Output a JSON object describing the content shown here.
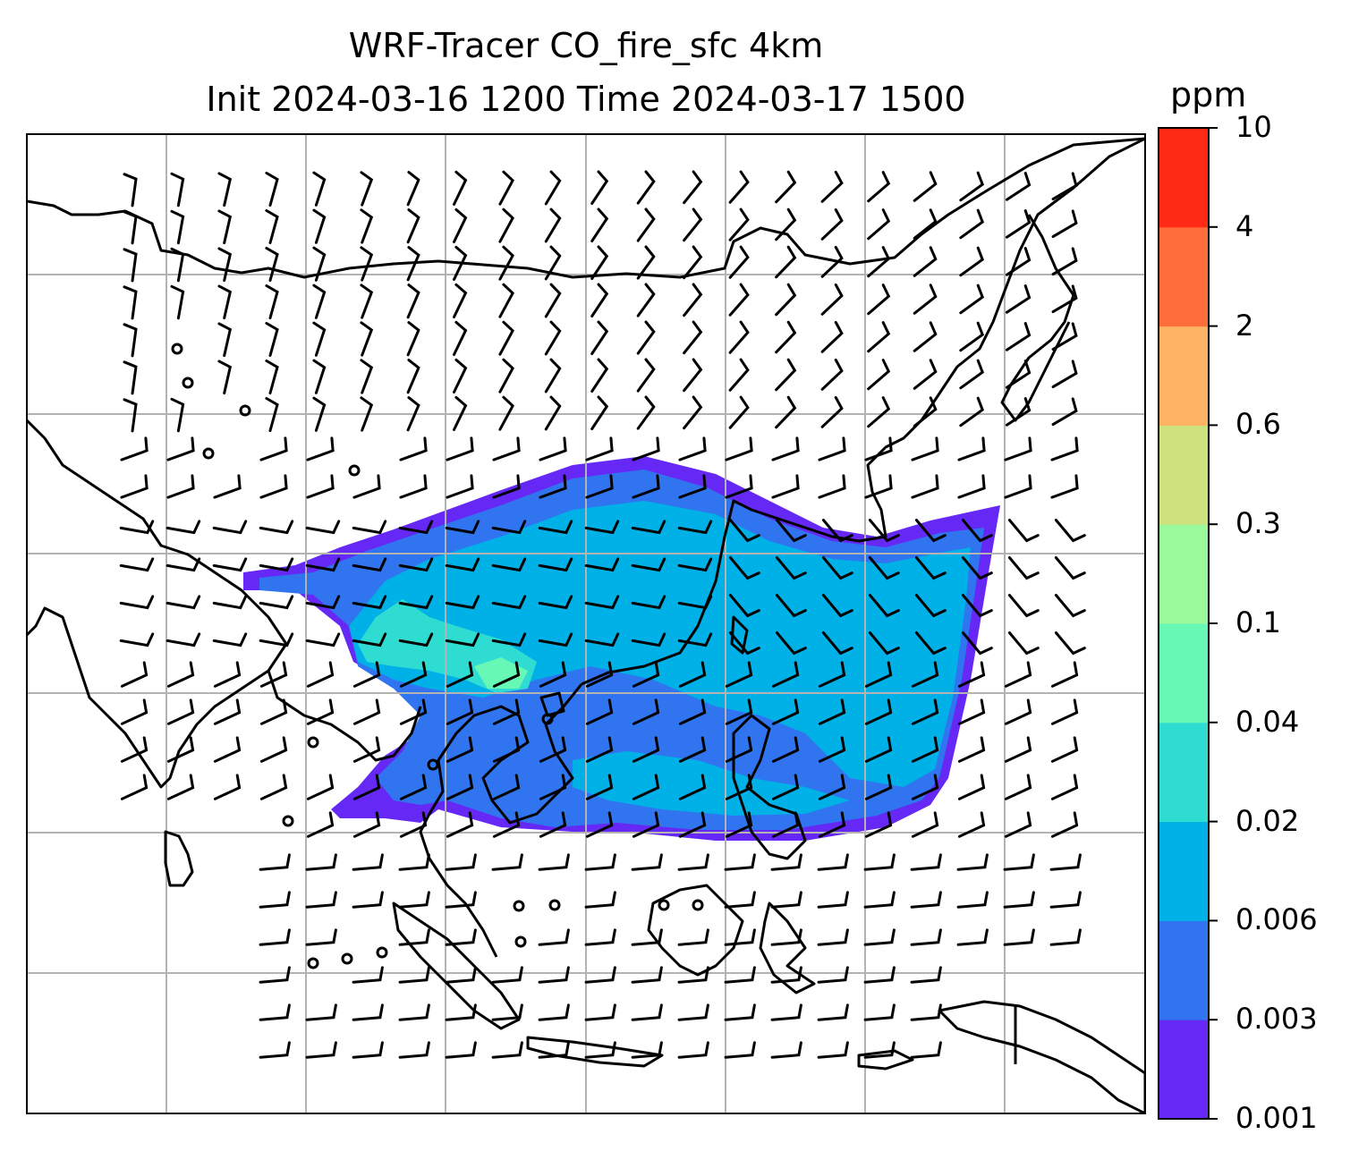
{
  "title": {
    "line1": "WRF-Tracer CO_fire_sfc 4km",
    "line2": "Init 2024-03-16 1200 Time 2024-03-17 1500"
  },
  "colorbar": {
    "unit": "ppm",
    "levels": [
      "0.001",
      "0.003",
      "0.006",
      "0.02",
      "0.04",
      "0.1",
      "0.3",
      "0.6",
      "2",
      "4",
      "10"
    ],
    "colors": [
      "#6629f5",
      "#3074f0",
      "#00b1e8",
      "#2fdcd1",
      "#67f8b6",
      "#9af99a",
      "#cde27f",
      "#ffb365",
      "#ff6e3a",
      "#ff2a16"
    ]
  },
  "map": {
    "variable": "CO_fire_sfc",
    "overlay": "wind barbs",
    "grid": true,
    "colors": {
      "coastline": "#000000",
      "gridline": "#b3b3b3",
      "plume_low": "#6629f5",
      "plume_mid": "#3074f0",
      "plume_high": "#00b1e8",
      "plume_peak": "#67f8b6"
    }
  }
}
